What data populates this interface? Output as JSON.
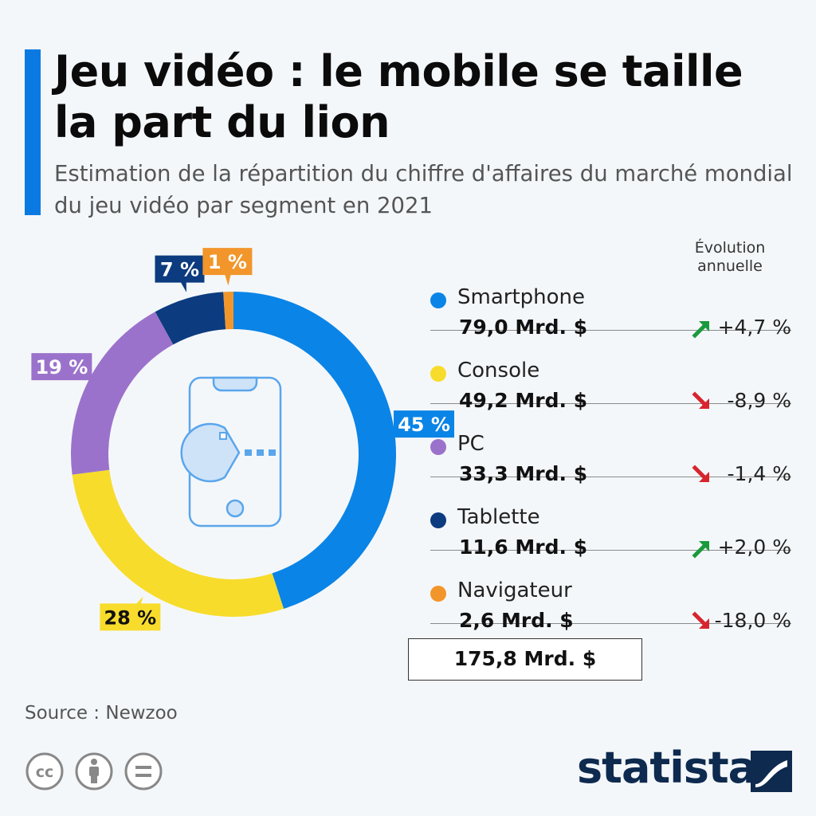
{
  "header": {
    "title": "Jeu vidéo : le mobile se taille la part du lion",
    "subtitle": "Estimation de la répartition du chiffre d'affaires du marché mondial du jeu vidéo par segment en 2021"
  },
  "legend_header": "Évolution annuelle",
  "chart_data": {
    "type": "pie",
    "style": "donut",
    "title": "Jeu vidéo : le mobile se taille la part du lion",
    "categories": [
      "Smartphone",
      "Console",
      "PC",
      "Tablette",
      "Navigateur"
    ],
    "values_pct": [
      45,
      28,
      19,
      7,
      1
    ],
    "pct_labels": [
      "45 %",
      "28 %",
      "19 %",
      "7 %",
      "1 %"
    ],
    "revenue": [
      79.0,
      49.2,
      33.3,
      11.6,
      2.6
    ],
    "revenue_labels": [
      "79,0 Mrd. $",
      "49,2 Mrd. $",
      "33,3 Mrd. $",
      "11,6 Mrd. $",
      "2,6 Mrd. $"
    ],
    "annual_change": [
      4.7,
      -8.9,
      -1.4,
      2.0,
      -18.0
    ],
    "annual_change_labels": [
      "+4,7 %",
      "-8,9 %",
      "-1,4 %",
      "+2,0 %",
      "-18,0 %"
    ],
    "colors": [
      "#0a84e6",
      "#f7dc2c",
      "#9b72cb",
      "#0c3b7f",
      "#f2962b"
    ],
    "label_colors": [
      "#0a84e6",
      "#f7dc2c",
      "#9b72cb",
      "#0c3b7f",
      "#f2962b"
    ],
    "label_text_colors": [
      "#ffffff",
      "#111111",
      "#ffffff",
      "#ffffff",
      "#ffffff"
    ],
    "total_label": "175,8 Mrd. $",
    "legend_placement": "right"
  },
  "colors": {
    "accent": "#0a7ae2",
    "arrow_up": "#1a9a3c",
    "arrow_down": "#d8242e",
    "logo": "#0e2a4f"
  },
  "center_icon": "smartphone-pacman-icon",
  "source": "Source : Newzoo",
  "license_icons": [
    "cc-icon",
    "attribution-icon",
    "no-derivatives-icon"
  ],
  "brand": "statista"
}
